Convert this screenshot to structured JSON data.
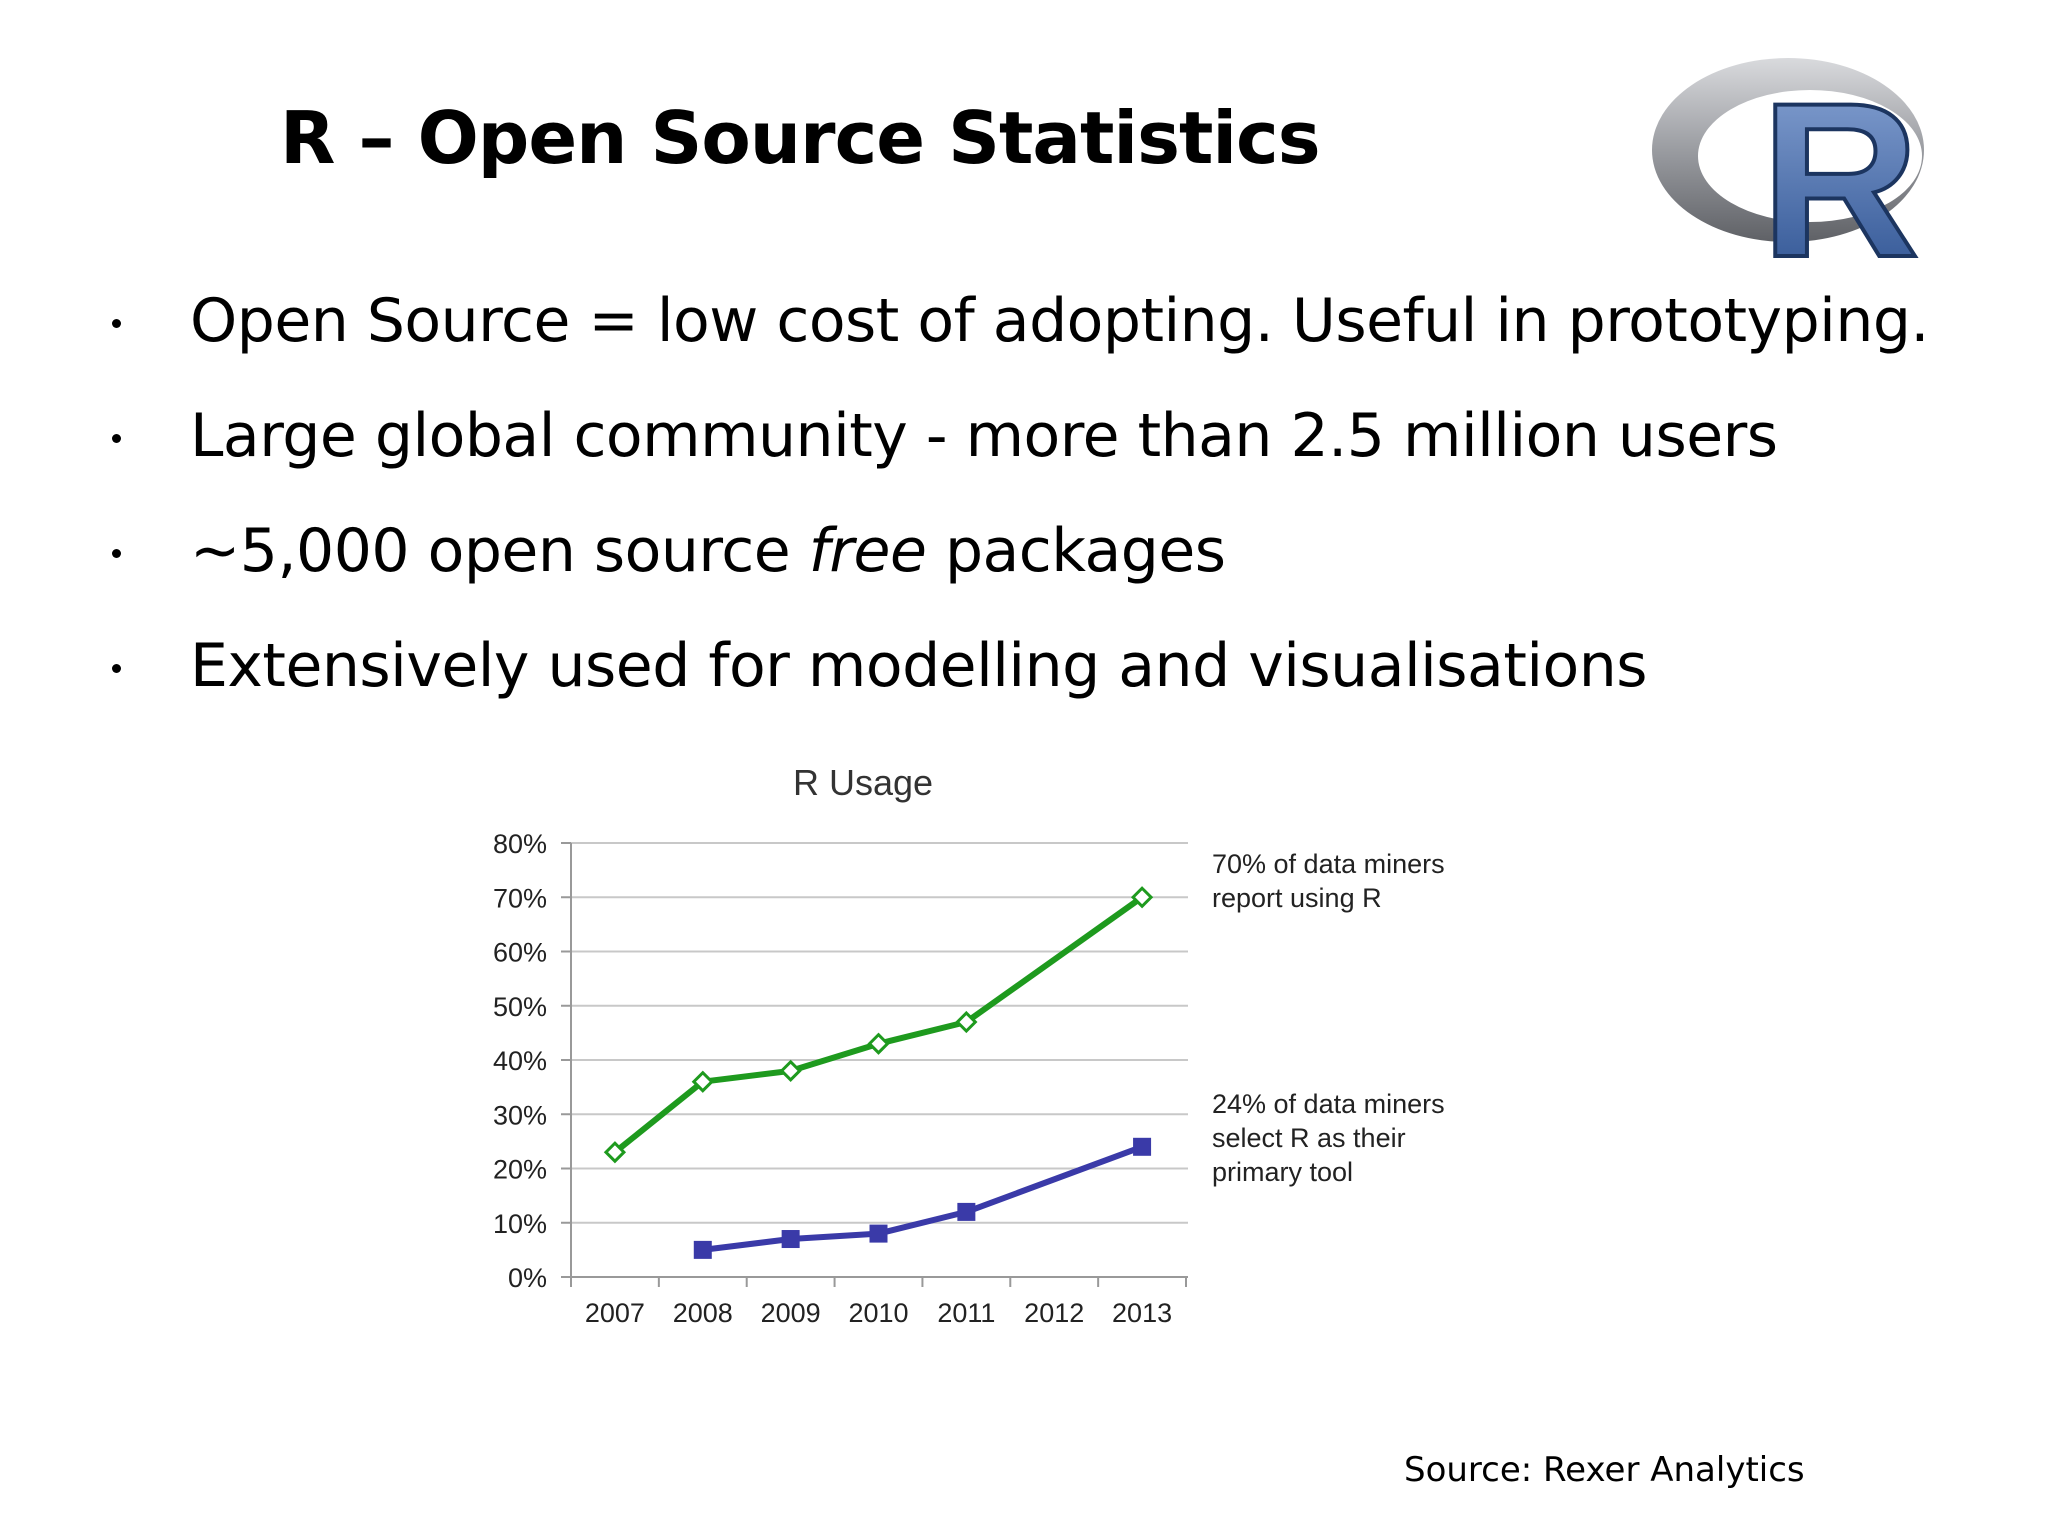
{
  "slide": {
    "title": "R – Open Source Statistics",
    "bullets": [
      {
        "before": "Open Source = low cost of adopting. Useful in prototyping.",
        "emph": "",
        "after": ""
      },
      {
        "before": "Large global community - more than 2.5 million users",
        "emph": "",
        "after": ""
      },
      {
        "before": "~5,000 open source ",
        "emph": "free",
        "after": " packages"
      },
      {
        "before": "Extensively used for modelling and visualisations",
        "emph": "",
        "after": ""
      }
    ],
    "source": "Source: Rexer Analytics",
    "logo": {
      "letter": "R"
    }
  },
  "chart_data": {
    "type": "line",
    "title": "R Usage",
    "categories": [
      "2007",
      "2008",
      "2009",
      "2010",
      "2011",
      "2012",
      "2013"
    ],
    "y_ticks": [
      "0%",
      "10%",
      "20%",
      "30%",
      "40%",
      "50%",
      "60%",
      "70%",
      "80%"
    ],
    "ylim": [
      0,
      80
    ],
    "grid": true,
    "series": [
      {
        "values": [
          23,
          36,
          38,
          43,
          47,
          null,
          70
        ],
        "color": "#1e9a1e",
        "marker": "diamond-open"
      },
      {
        "values": [
          null,
          5,
          7,
          8,
          12,
          null,
          24
        ],
        "color": "#3a3aa8",
        "marker": "square-filled"
      }
    ],
    "annotations": [
      {
        "lines": [
          "70% of data miners",
          "report using R"
        ]
      },
      {
        "lines": [
          "24% of data miners",
          "select R as their",
          "primary tool"
        ]
      }
    ]
  }
}
